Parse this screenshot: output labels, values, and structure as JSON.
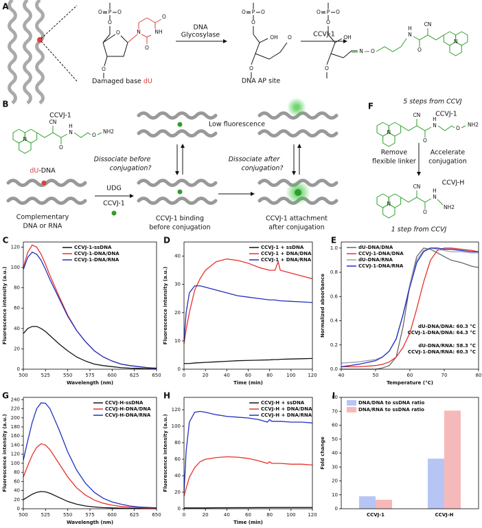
{
  "scheme_a": {
    "panel": "A",
    "step1": [
      "DNA",
      "Glycosylase"
    ],
    "step2": "CCVJ-1",
    "caption1": [
      "Damaged base ",
      "dU"
    ],
    "caption2": "DNA AP site",
    "atoms_1": [
      "O",
      "P",
      "O",
      "O",
      "O",
      "O"
    ],
    "base_atoms": [
      "N",
      "O",
      "NH",
      "O"
    ],
    "atoms_2": [
      "O",
      "P",
      "O",
      "O",
      "OH",
      "O",
      "O"
    ],
    "atoms_3": [
      "O",
      "P",
      "O",
      "O",
      "OH",
      "N",
      "O",
      "N",
      "H",
      "CN",
      "O",
      "N",
      "O"
    ]
  },
  "scheme_b": {
    "panel": "B",
    "probe": "CCVJ-1",
    "atoms": [
      "N",
      "CN",
      "O",
      "N",
      "H",
      "O",
      "NH2"
    ],
    "substrate": [
      "dU",
      "-DNA"
    ],
    "complement": [
      "Complementary",
      "DNA or RNA"
    ],
    "reagents": [
      "UDG",
      "CCVJ-1"
    ],
    "state1": [
      "CCVJ-1 binding",
      "before conjugation"
    ],
    "state2": [
      "CCVJ-1 attachment",
      "after conjugation"
    ],
    "q1": [
      "Dissociate before",
      "conjugation?"
    ],
    "q2": [
      "Dissociate after",
      "conjugation?"
    ],
    "low": "Low fluorescence"
  },
  "scheme_f": {
    "panel": "F",
    "top": "5 steps from CCVJ",
    "probe1": "CCVJ-1",
    "atoms_1": [
      "N",
      "CN",
      "O",
      "N",
      "H",
      "O",
      "NH2"
    ],
    "left": [
      "Remove",
      "flexible linker"
    ],
    "right": [
      "Accelerate",
      "conjugation"
    ],
    "probe2": "CCVJ-H",
    "atoms_2": [
      "N",
      "CN",
      "O",
      "N",
      "H",
      "NH2"
    ],
    "bottom": "1 step from CCVJ"
  },
  "chart_data": [
    {
      "type": "line",
      "panel": "C",
      "xlabel": "Wavelength (nm)",
      "ylabel": "Fluorescence intensity (a.u.)",
      "legend": "upper center",
      "x": [
        500,
        505,
        510,
        515,
        520,
        525,
        530,
        540,
        550,
        560,
        570,
        580,
        590,
        600,
        610,
        620,
        630,
        640,
        650
      ],
      "xlim": [
        500,
        650
      ],
      "xticks": [
        500,
        525,
        550,
        575,
        600,
        625,
        650
      ],
      "ylim": [
        0,
        125
      ],
      "yticks": [
        0,
        20,
        40,
        60,
        80,
        100,
        120
      ],
      "series": [
        {
          "name": "CCVJ-1-ssDNA",
          "color": "#111111",
          "values": [
            35,
            40,
            42,
            42,
            40,
            37,
            33,
            25,
            18,
            12,
            8,
            5,
            3.5,
            2.5,
            1.5,
            1,
            0.8,
            0.5,
            0.3
          ]
        },
        {
          "name": "CCVJ-1-DNA/DNA",
          "color": "#e8302a",
          "values": [
            100,
            115,
            122,
            120,
            113,
            103,
            92,
            72,
            53,
            38,
            27,
            18,
            12,
            8,
            5,
            3.5,
            2.5,
            1.5,
            1
          ]
        },
        {
          "name": "CCVJ-1-DNA/RNA",
          "color": "#1f2fbf",
          "values": [
            98,
            110,
            115,
            113,
            107,
            98,
            88,
            70,
            52,
            38,
            27,
            18,
            12,
            8,
            5,
            3.5,
            2.5,
            1.5,
            1
          ]
        }
      ]
    },
    {
      "type": "line",
      "panel": "D",
      "xlabel": "Time (min)",
      "ylabel": "Fluorescence intensity (a.u.)",
      "legend": "upper right",
      "x": [
        0,
        2,
        5,
        10,
        15,
        20,
        30,
        40,
        50,
        60,
        70,
        80,
        85,
        88,
        90,
        100,
        110,
        120
      ],
      "xlim": [
        0,
        120
      ],
      "xticks": [
        0,
        20,
        40,
        60,
        80,
        100,
        120
      ],
      "ylim": [
        0,
        45
      ],
      "yticks": [
        0,
        10,
        20,
        30,
        40
      ],
      "series": [
        {
          "name": "CCVJ-1 + ssDNA",
          "color": "#111111",
          "values": [
            2,
            2,
            2,
            2.2,
            2.3,
            2.4,
            2.6,
            2.8,
            3,
            3.1,
            3.2,
            3.3,
            3.4,
            3.4,
            3.5,
            3.6,
            3.7,
            3.8
          ]
        },
        {
          "name": "CCVJ-1 + DNA/DNA",
          "color": "#e8302a",
          "values": [
            9,
            14,
            20,
            28,
            32,
            35,
            38,
            39,
            38.5,
            37.5,
            36,
            35,
            35,
            38,
            35,
            34,
            33,
            32
          ]
        },
        {
          "name": "CCVJ-1 + DNA/RNA",
          "color": "#1f2fbf",
          "values": [
            10,
            20,
            27,
            29.5,
            29.5,
            29,
            28,
            27,
            26,
            25.5,
            25,
            24.5,
            24.5,
            24.3,
            24.2,
            24,
            23.8,
            23.6
          ]
        }
      ]
    },
    {
      "type": "line",
      "panel": "E",
      "xlabel": "Temperature (°C)",
      "ylabel": "Normalized absorbance",
      "legend": "upper left",
      "x": [
        40,
        45,
        50,
        52,
        54,
        56,
        58,
        60,
        62,
        64,
        66,
        68,
        70,
        72,
        75,
        78,
        80
      ],
      "xlim": [
        40,
        80
      ],
      "xticks": [
        40,
        50,
        60,
        70,
        80
      ],
      "ylim": [
        0,
        1.05
      ],
      "yticks": [
        {
          "value": 0,
          "label": "0.0"
        },
        0.2,
        0.4,
        0.6,
        0.8,
        {
          "value": 1,
          "label": "1.0"
        }
      ],
      "series": [
        {
          "name": "dU-DNA/DNA",
          "color": "#666666",
          "values": [
            0,
            0,
            0,
            0.01,
            0.03,
            0.1,
            0.35,
            0.7,
            0.93,
            1.0,
            0.99,
            0.96,
            0.93,
            0.9,
            0.88,
            0.85,
            0.84
          ]
        },
        {
          "name": "CCVJ-1-DNA/DNA",
          "color": "#e8302a",
          "values": [
            0.02,
            0.02,
            0.03,
            0.04,
            0.06,
            0.1,
            0.18,
            0.3,
            0.5,
            0.72,
            0.9,
            0.98,
            1.0,
            1.0,
            0.99,
            0.98,
            0.97
          ]
        },
        {
          "name": "dU-DNA/RNA",
          "color": "#9a9ab8",
          "values": [
            0.05,
            0.06,
            0.08,
            0.1,
            0.15,
            0.25,
            0.45,
            0.7,
            0.9,
            0.98,
            1.0,
            0.99,
            0.98,
            0.97,
            0.97,
            0.96,
            0.96
          ]
        },
        {
          "name": "CCVJ-1-DNA/RNA",
          "color": "#1f2fbf",
          "values": [
            0.02,
            0.04,
            0.07,
            0.1,
            0.15,
            0.25,
            0.45,
            0.68,
            0.88,
            0.97,
            1.0,
            1.0,
            0.99,
            0.99,
            0.98,
            0.97,
            0.97
          ]
        }
      ],
      "annotations": [
        "dU-DNA/DNA: 60.3 °C",
        "CCVJ-1-DNA/DNA: 64.3 °C",
        "dU-DNA/RNA: 58.3 °C",
        "CCVJ-1-DNA/RNA: 60.3 °C"
      ]
    },
    {
      "type": "line",
      "panel": "G",
      "xlabel": "Wavelength (nm)",
      "ylabel": "Fluorescence intensity (a.u.)",
      "legend": "upper right",
      "x": [
        500,
        505,
        510,
        515,
        520,
        525,
        530,
        540,
        550,
        560,
        570,
        580,
        590,
        600,
        610,
        620,
        630,
        640,
        650
      ],
      "xlim": [
        500,
        650
      ],
      "xticks": [
        500,
        525,
        550,
        575,
        600,
        625,
        650
      ],
      "ylim": [
        0,
        245
      ],
      "yticks": [
        0,
        20,
        40,
        60,
        80,
        100,
        120,
        140,
        160,
        180,
        200,
        220,
        240
      ],
      "series": [
        {
          "name": "CCVJ-H-ssDNA",
          "color": "#111111",
          "values": [
            20,
            26,
            32,
            36,
            38,
            37,
            34,
            25,
            16,
            10,
            6,
            4,
            2.5,
            1.8,
            1.2,
            0.8,
            0.5,
            0.3,
            0.2
          ]
        },
        {
          "name": "CCVJ-H-DNA/DNA",
          "color": "#e8302a",
          "values": [
            70,
            95,
            118,
            135,
            143,
            140,
            130,
            100,
            70,
            46,
            30,
            19,
            12,
            8,
            5,
            3.5,
            2.5,
            1.5,
            1
          ]
        },
        {
          "name": "CCVJ-H-DNA/RNA",
          "color": "#1f2fbf",
          "values": [
            107,
            150,
            190,
            220,
            233,
            232,
            220,
            175,
            125,
            85,
            56,
            36,
            23,
            15,
            10,
            6,
            4,
            3,
            2
          ]
        }
      ]
    },
    {
      "type": "line",
      "panel": "H",
      "xlabel": "Time (min)",
      "ylabel": "Fluorescence intensity (a.u.)",
      "legend": "upper right",
      "x": [
        0,
        2,
        5,
        10,
        15,
        20,
        30,
        40,
        50,
        60,
        70,
        78,
        80,
        82,
        90,
        100,
        110,
        120
      ],
      "xlim": [
        0,
        120
      ],
      "xticks": [
        0,
        20,
        40,
        60,
        80,
        100,
        120
      ],
      "ylim": [
        0,
        135
      ],
      "yticks": [
        0,
        20,
        40,
        60,
        80,
        100,
        120
      ],
      "series": [
        {
          "name": "CCVJ-H + ssDNA",
          "color": "#111111",
          "values": [
            1,
            1,
            1,
            1,
            1,
            1,
            1.2,
            1.2,
            1.3,
            1.3,
            1.4,
            1.4,
            1.4,
            1.5,
            1.5,
            1.5,
            1.5,
            1.5
          ]
        },
        {
          "name": "CCVJ-H + DNA/DNA",
          "color": "#e8302a",
          "values": [
            15,
            25,
            38,
            50,
            57,
            60,
            62,
            63,
            62.5,
            61,
            58,
            55,
            57,
            55,
            55,
            54,
            54,
            53
          ]
        },
        {
          "name": "CCVJ-H + DNA/RNA",
          "color": "#1f2fbf",
          "values": [
            20,
            70,
            105,
            117,
            118,
            117,
            114,
            112,
            111,
            110,
            108,
            105,
            108,
            106,
            106,
            105,
            105,
            104
          ]
        }
      ]
    },
    {
      "type": "bar",
      "panel": "I",
      "ylabel": "Fold change",
      "legend": "upper left",
      "categories": [
        "CCVJ-1",
        "CCVJ-H"
      ],
      "ylim": [
        0,
        80
      ],
      "yticks": [
        0,
        10,
        20,
        30,
        40,
        50,
        60,
        70,
        80
      ],
      "series": [
        {
          "name": "DNA/DNA to ssDNA ratio",
          "color": "#b7c5f5",
          "values": [
            9,
            36
          ]
        },
        {
          "name": "DNA/RNA to ssDNA ratio",
          "color": "#f6b9b9",
          "values": [
            6.5,
            70.5
          ]
        }
      ]
    }
  ]
}
